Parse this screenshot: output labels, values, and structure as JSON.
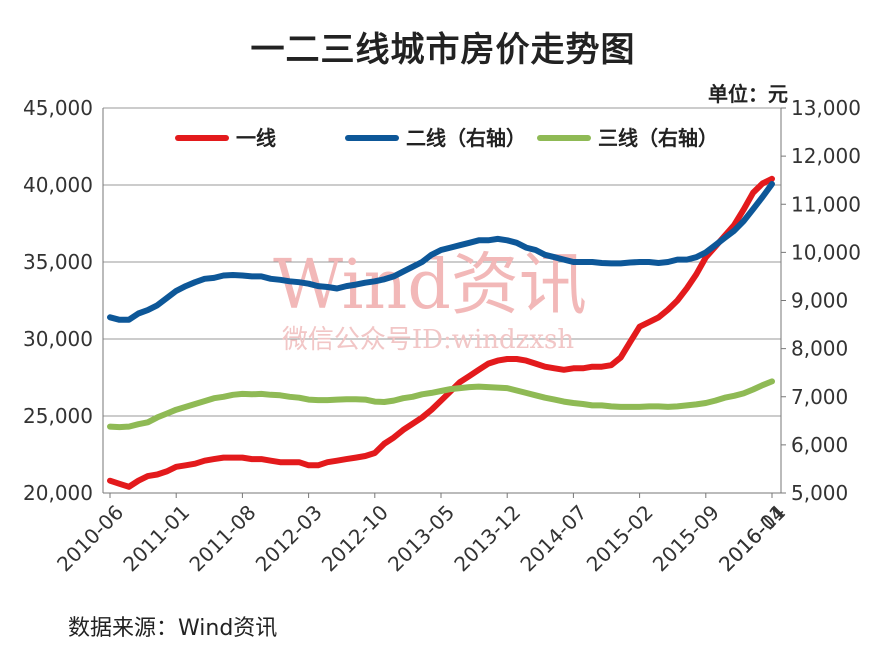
{
  "title": "一二三线城市房价走势图",
  "unit_label": "单位：元",
  "source": "数据来源：Wind资讯",
  "watermark": {
    "main": "Wind资讯",
    "sub": "微信公众号ID:windzxsh"
  },
  "chart_data": {
    "type": "line",
    "x_tick_labels": [
      "2010-06",
      "2011-01",
      "2011-08",
      "2012-03",
      "2012-10",
      "2013-05",
      "2013-12",
      "2014-07",
      "2015-02",
      "2015-09",
      "2016-04",
      "2016-11"
    ],
    "y_left": {
      "range": [
        20000,
        45000
      ],
      "ticks": [
        "20,000",
        "25,000",
        "30,000",
        "35,000",
        "40,000",
        "45,000"
      ]
    },
    "y_right": {
      "range": [
        5000,
        13000
      ],
      "ticks": [
        "5,000",
        "6,000",
        "7,000",
        "8,000",
        "9,000",
        "10,000",
        "11,000",
        "12,000",
        "13,000"
      ]
    },
    "grid": true,
    "legend_position": "top",
    "series": [
      {
        "name": "一线",
        "axis": "left",
        "color": "#e31a1c",
        "values": [
          20800,
          20600,
          20400,
          20800,
          21100,
          21200,
          21400,
          21700,
          21800,
          21900,
          22100,
          22200,
          22300,
          22300,
          22300,
          22200,
          22200,
          22100,
          22000,
          22000,
          22000,
          21800,
          21800,
          22000,
          22100,
          22200,
          22300,
          22400,
          22600,
          23200,
          23600,
          24100,
          24500,
          24900,
          25400,
          26000,
          26600,
          27200,
          27600,
          28000,
          28400,
          28600,
          28700,
          28700,
          28600,
          28400,
          28200,
          28100,
          28000,
          28100,
          28100,
          28200,
          28200,
          28300,
          28800,
          29800,
          30800,
          31100,
          31400,
          31900,
          32500,
          33300,
          34200,
          35300,
          36000,
          36700,
          37400,
          38400,
          39500,
          40100,
          40400
        ]
      },
      {
        "name": "二线（右轴）",
        "axis": "right",
        "color": "#0d5798",
        "values": [
          8650,
          8600,
          8600,
          8730,
          8800,
          8900,
          9050,
          9200,
          9300,
          9380,
          9450,
          9470,
          9520,
          9530,
          9520,
          9500,
          9500,
          9450,
          9430,
          9400,
          9380,
          9350,
          9300,
          9280,
          9250,
          9300,
          9330,
          9370,
          9400,
          9440,
          9500,
          9600,
          9700,
          9800,
          9950,
          10050,
          10100,
          10150,
          10200,
          10250,
          10250,
          10280,
          10250,
          10200,
          10100,
          10050,
          9950,
          9900,
          9850,
          9800,
          9800,
          9800,
          9780,
          9770,
          9770,
          9790,
          9800,
          9800,
          9780,
          9800,
          9850,
          9850,
          9900,
          10000,
          10150,
          10300,
          10450,
          10650,
          10900,
          11150,
          11420
        ]
      },
      {
        "name": "三线（右轴）",
        "axis": "right",
        "color": "#8fba55",
        "values": [
          6380,
          6370,
          6380,
          6430,
          6470,
          6570,
          6650,
          6730,
          6790,
          6850,
          6910,
          6970,
          7000,
          7040,
          7060,
          7050,
          7060,
          7040,
          7030,
          7000,
          6980,
          6940,
          6930,
          6930,
          6940,
          6950,
          6950,
          6940,
          6900,
          6890,
          6920,
          6970,
          7000,
          7050,
          7080,
          7120,
          7160,
          7180,
          7200,
          7210,
          7200,
          7190,
          7180,
          7130,
          7080,
          7030,
          6980,
          6940,
          6900,
          6870,
          6850,
          6820,
          6820,
          6800,
          6790,
          6790,
          6790,
          6800,
          6800,
          6790,
          6800,
          6820,
          6840,
          6870,
          6920,
          6980,
          7020,
          7070,
          7150,
          7240,
          7320
        ]
      }
    ]
  }
}
